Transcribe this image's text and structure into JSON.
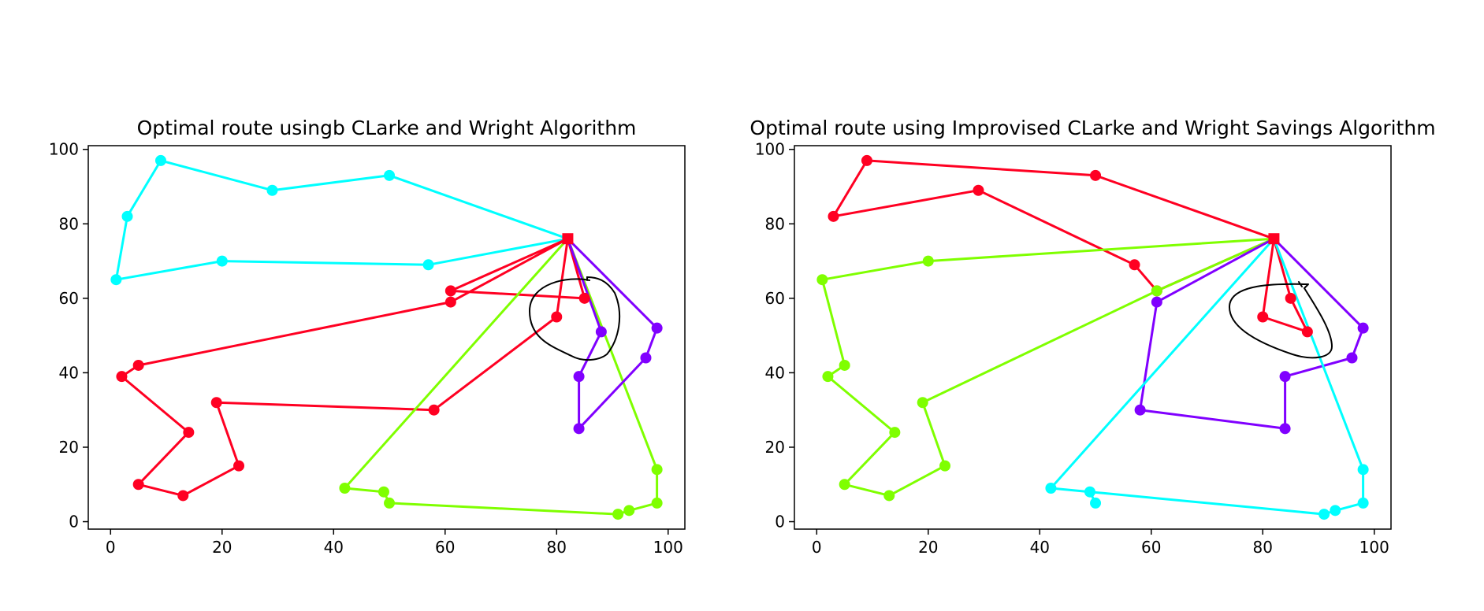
{
  "chart_data": [
    {
      "type": "line",
      "title": "Optimal route usingb CLarke and Wright Algorithm",
      "xlim": [
        -4,
        103
      ],
      "ylim": [
        -2,
        101
      ],
      "xticks": [
        0,
        20,
        40,
        60,
        80,
        100
      ],
      "yticks": [
        0,
        20,
        40,
        60,
        80,
        100
      ],
      "depot": {
        "x": 82,
        "y": 76
      },
      "series": [
        {
          "color": "#00ffff",
          "points": [
            [
              82,
              76
            ],
            [
              50,
              93
            ],
            [
              29,
              89
            ],
            [
              9,
              97
            ],
            [
              3,
              82
            ],
            [
              1,
              65
            ],
            [
              20,
              70
            ],
            [
              57,
              69
            ],
            [
              82,
              76
            ]
          ]
        },
        {
          "color": "#ff0022",
          "points": [
            [
              82,
              76
            ],
            [
              61,
              62
            ],
            [
              85,
              60
            ],
            [
              82,
              76
            ],
            [
              61,
              59
            ],
            [
              5,
              42
            ],
            [
              2,
              39
            ],
            [
              14,
              24
            ],
            [
              5,
              10
            ],
            [
              13,
              7
            ],
            [
              23,
              15
            ],
            [
              19,
              32
            ],
            [
              58,
              30
            ],
            [
              80,
              55
            ],
            [
              82,
              76
            ]
          ]
        },
        {
          "color": "#7fff00",
          "points": [
            [
              82,
              76
            ],
            [
              42,
              9
            ],
            [
              49,
              8
            ],
            [
              50,
              5
            ],
            [
              91,
              2
            ],
            [
              93,
              3
            ],
            [
              98,
              5
            ],
            [
              98,
              14
            ],
            [
              82,
              76
            ]
          ]
        },
        {
          "color": "#8000ff",
          "points": [
            [
              82,
              76
            ],
            [
              88,
              51
            ],
            [
              84,
              39
            ],
            [
              84,
              25
            ],
            [
              96,
              44
            ],
            [
              98,
              52
            ],
            [
              82,
              76
            ]
          ]
        }
      ]
    },
    {
      "type": "line",
      "title": "Optimal route using Improvised CLarke and Wright Savings Algorithm",
      "xlim": [
        -4,
        103
      ],
      "ylim": [
        -2,
        101
      ],
      "xticks": [
        0,
        20,
        40,
        60,
        80,
        100
      ],
      "yticks": [
        0,
        20,
        40,
        60,
        80,
        100
      ],
      "depot": {
        "x": 82,
        "y": 76
      },
      "series": [
        {
          "color": "#ff0022",
          "points": [
            [
              82,
              76
            ],
            [
              50,
              93
            ],
            [
              9,
              97
            ],
            [
              3,
              82
            ],
            [
              29,
              89
            ],
            [
              57,
              69
            ],
            [
              61,
              62
            ],
            [
              82,
              76
            ],
            [
              80,
              55
            ],
            [
              88,
              51
            ],
            [
              85,
              60
            ],
            [
              82,
              76
            ]
          ]
        },
        {
          "color": "#7fff00",
          "points": [
            [
              82,
              76
            ],
            [
              20,
              70
            ],
            [
              1,
              65
            ],
            [
              5,
              42
            ],
            [
              2,
              39
            ],
            [
              14,
              24
            ],
            [
              5,
              10
            ],
            [
              13,
              7
            ],
            [
              23,
              15
            ],
            [
              19,
              32
            ],
            [
              61,
              62
            ],
            [
              82,
              76
            ]
          ]
        },
        {
          "color": "#8000ff",
          "points": [
            [
              82,
              76
            ],
            [
              98,
              52
            ],
            [
              96,
              44
            ],
            [
              84,
              39
            ],
            [
              84,
              25
            ],
            [
              58,
              30
            ],
            [
              61,
              59
            ],
            [
              82,
              76
            ]
          ]
        },
        {
          "color": "#00ffff",
          "points": [
            [
              82,
              76
            ],
            [
              42,
              9
            ],
            [
              49,
              8
            ],
            [
              50,
              5
            ],
            [
              49,
              8
            ],
            [
              91,
              2
            ],
            [
              93,
              3
            ],
            [
              98,
              5
            ],
            [
              98,
              14
            ],
            [
              82,
              76
            ]
          ]
        }
      ]
    }
  ]
}
